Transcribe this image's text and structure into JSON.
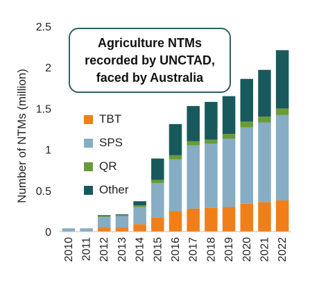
{
  "chart_data": {
    "type": "bar",
    "stacked": true,
    "title": "Agriculture NTMs recorded by UNCTAD, faced by Australia",
    "title_lines": [
      "Agriculture NTMs",
      "recorded by UNCTAD,",
      "faced by Australia"
    ],
    "xlabel": "",
    "ylabel": "Number of NTMs (million)",
    "ylim": [
      0,
      2.5
    ],
    "yticks": [
      "0",
      "0.5",
      "1",
      "1.5",
      "2",
      "2.5"
    ],
    "categories": [
      "2010",
      "2011",
      "2012",
      "2013",
      "2014",
      "2015",
      "2016",
      "2017",
      "2018",
      "2019",
      "2020",
      "2021",
      "2022"
    ],
    "series": [
      {
        "name": "TBT",
        "color": "#f07f1a",
        "values": [
          0.0,
          0.0,
          0.05,
          0.05,
          0.09,
          0.17,
          0.25,
          0.28,
          0.29,
          0.3,
          0.34,
          0.36,
          0.38
        ]
      },
      {
        "name": "SPS",
        "color": "#86adc4",
        "values": [
          0.04,
          0.04,
          0.13,
          0.14,
          0.21,
          0.42,
          0.63,
          0.77,
          0.78,
          0.83,
          0.93,
          0.97,
          1.04
        ]
      },
      {
        "name": "QR",
        "color": "#6a9a3a",
        "values": [
          0.0,
          0.0,
          0.01,
          0.01,
          0.02,
          0.04,
          0.05,
          0.05,
          0.05,
          0.06,
          0.07,
          0.07,
          0.08
        ]
      },
      {
        "name": "Other",
        "color": "#185a5c",
        "values": [
          0.0,
          0.0,
          0.01,
          0.01,
          0.05,
          0.26,
          0.38,
          0.43,
          0.46,
          0.46,
          0.52,
          0.57,
          0.71
        ]
      }
    ],
    "legend_position": "left-inside",
    "grid": false
  }
}
